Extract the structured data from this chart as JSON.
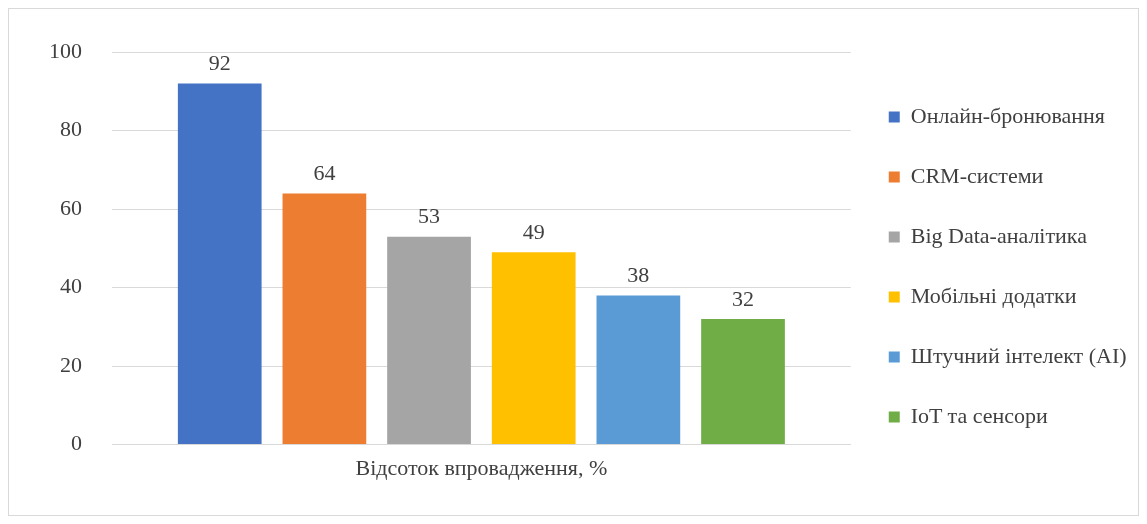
{
  "chart_data": {
    "type": "bar",
    "categories": [
      "Відсоток впровадження, %"
    ],
    "series": [
      {
        "name": "Онлайн-бронювання",
        "color": "#4472c4",
        "values": [
          92
        ]
      },
      {
        "name": "CRM-системи",
        "color": "#ed7d31",
        "values": [
          64
        ]
      },
      {
        "name": "Big Data-аналітика",
        "color": "#a5a5a5",
        "values": [
          53
        ]
      },
      {
        "name": "Мобільні додатки",
        "color": "#ffc000",
        "values": [
          49
        ]
      },
      {
        "name": "Штучний інтелект (AI)",
        "color": "#5b9bd5",
        "values": [
          38
        ]
      },
      {
        "name": "IoT та сенсори",
        "color": "#70ad47",
        "values": [
          32
        ]
      }
    ],
    "ylim": [
      0,
      100
    ],
    "yticks": [
      0,
      20,
      40,
      60,
      80,
      100
    ],
    "grid": "y",
    "legend": "right",
    "data_labels": true
  }
}
